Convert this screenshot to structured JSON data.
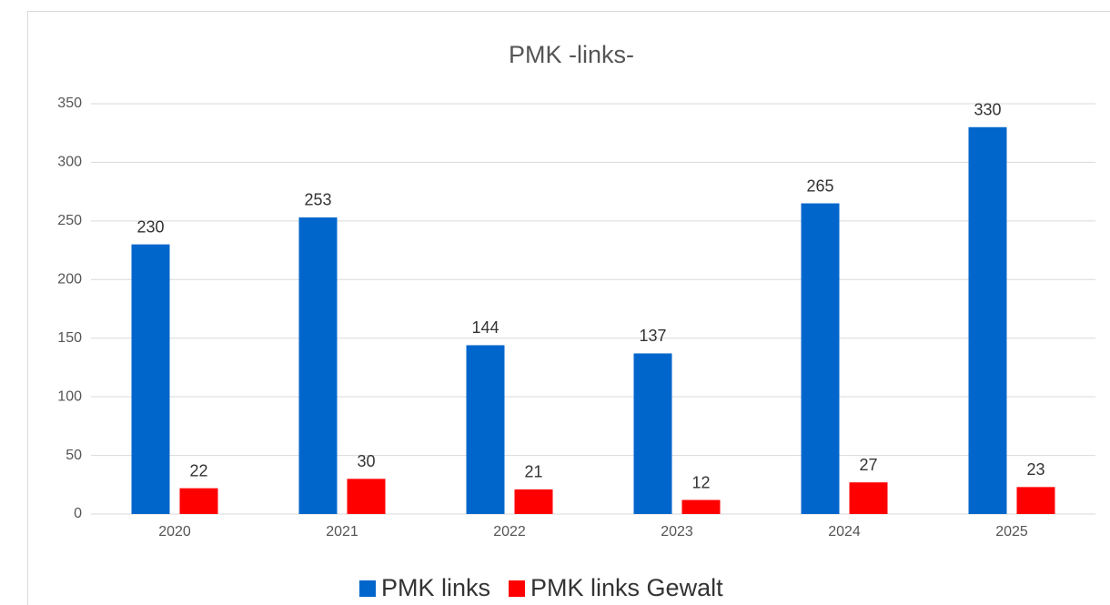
{
  "chart_data": {
    "type": "bar",
    "title": "PMK -links-",
    "categories": [
      "2020",
      "2021",
      "2022",
      "2023",
      "2024",
      "2025"
    ],
    "series": [
      {
        "name": "PMK links",
        "color": "#0066cc",
        "values": [
          230,
          253,
          144,
          137,
          265,
          330
        ]
      },
      {
        "name": "PMK links Gewalt",
        "color": "#ff0000",
        "values": [
          22,
          30,
          21,
          12,
          27,
          23
        ]
      }
    ],
    "ylim": [
      0,
      350
    ],
    "yticks": [
      0,
      50,
      100,
      150,
      200,
      250,
      300,
      350
    ],
    "grid": true
  }
}
